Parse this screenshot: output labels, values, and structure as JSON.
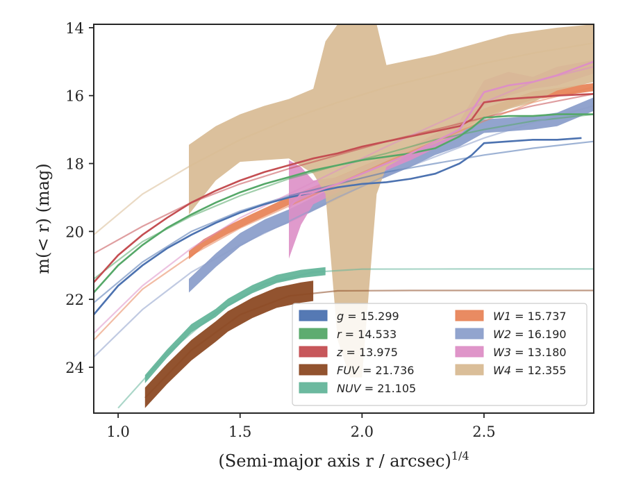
{
  "chart_data": {
    "type": "line",
    "title": "",
    "xlabel": "(Semi-major axis r / arcsec)",
    "xlabel_superscript": "1/4",
    "ylabel": "m(< r) (mag)",
    "xlim": [
      0.9,
      2.95
    ],
    "ylim": [
      25.35,
      13.9
    ],
    "y_inverted": true,
    "grid": false,
    "legend_position": "lower-right",
    "x_ticks": [
      "1.0",
      "1.5",
      "2.0",
      "2.5"
    ],
    "x_tick_values": [
      1.0,
      1.5,
      2.0,
      2.5
    ],
    "y_ticks": [
      "14",
      "16",
      "18",
      "20",
      "22",
      "24"
    ],
    "y_tick_values": [
      14,
      16,
      18,
      20,
      22,
      24
    ],
    "series": [
      {
        "name": "g = 15.299",
        "legend_math": "g",
        "legend_value": "15.299",
        "color": "#4c72b0",
        "data": [
          [
            0.9,
            22.45
          ],
          [
            1.0,
            21.6
          ],
          [
            1.1,
            21.0
          ],
          [
            1.2,
            20.5
          ],
          [
            1.3,
            20.1
          ],
          [
            1.4,
            19.75
          ],
          [
            1.5,
            19.45
          ],
          [
            1.6,
            19.2
          ],
          [
            1.7,
            19.0
          ],
          [
            1.8,
            18.85
          ],
          [
            1.9,
            18.7
          ],
          [
            2.0,
            18.6
          ],
          [
            2.1,
            18.55
          ],
          [
            2.2,
            18.45
          ],
          [
            2.3,
            18.3
          ],
          [
            2.4,
            18.0
          ],
          [
            2.45,
            17.75
          ],
          [
            2.5,
            17.4
          ],
          [
            2.6,
            17.35
          ],
          [
            2.7,
            17.3
          ],
          [
            2.8,
            17.3
          ],
          [
            2.9,
            17.25
          ]
        ],
        "model": [
          [
            0.9,
            22.1
          ],
          [
            1.1,
            20.9
          ],
          [
            1.3,
            20.0
          ],
          [
            1.5,
            19.4
          ],
          [
            1.7,
            18.95
          ],
          [
            1.9,
            18.6
          ],
          [
            2.1,
            18.25
          ],
          [
            2.3,
            18.0
          ],
          [
            2.5,
            17.75
          ],
          [
            2.7,
            17.55
          ],
          [
            2.95,
            17.35
          ]
        ]
      },
      {
        "name": "r = 14.533",
        "legend_math": "r",
        "legend_value": "14.533",
        "color": "#55a868",
        "data": [
          [
            0.9,
            21.8
          ],
          [
            1.0,
            21.0
          ],
          [
            1.1,
            20.4
          ],
          [
            1.2,
            19.9
          ],
          [
            1.3,
            19.5
          ],
          [
            1.4,
            19.15
          ],
          [
            1.5,
            18.85
          ],
          [
            1.6,
            18.6
          ],
          [
            1.7,
            18.4
          ],
          [
            1.8,
            18.2
          ],
          [
            1.9,
            18.05
          ],
          [
            2.0,
            17.9
          ],
          [
            2.1,
            17.8
          ],
          [
            2.2,
            17.7
          ],
          [
            2.3,
            17.55
          ],
          [
            2.4,
            17.2
          ],
          [
            2.45,
            16.95
          ],
          [
            2.5,
            16.65
          ],
          [
            2.6,
            16.6
          ],
          [
            2.7,
            16.6
          ],
          [
            2.8,
            16.55
          ],
          [
            2.95,
            16.55
          ]
        ],
        "model": [
          [
            0.9,
            21.4
          ],
          [
            1.1,
            20.3
          ],
          [
            1.3,
            19.55
          ],
          [
            1.5,
            18.95
          ],
          [
            1.7,
            18.45
          ],
          [
            1.9,
            18.05
          ],
          [
            2.1,
            17.7
          ],
          [
            2.3,
            17.3
          ],
          [
            2.5,
            17.0
          ],
          [
            2.7,
            16.75
          ],
          [
            2.95,
            16.55
          ]
        ]
      },
      {
        "name": "z = 13.975",
        "legend_math": "z",
        "legend_value": "13.975",
        "color": "#c44e52",
        "data": [
          [
            0.9,
            21.5
          ],
          [
            1.0,
            20.7
          ],
          [
            1.1,
            20.1
          ],
          [
            1.2,
            19.6
          ],
          [
            1.3,
            19.15
          ],
          [
            1.4,
            18.8
          ],
          [
            1.5,
            18.5
          ],
          [
            1.6,
            18.25
          ],
          [
            1.7,
            18.05
          ],
          [
            1.8,
            17.85
          ],
          [
            1.9,
            17.7
          ],
          [
            2.0,
            17.5
          ],
          [
            2.1,
            17.35
          ],
          [
            2.2,
            17.2
          ],
          [
            2.3,
            17.05
          ],
          [
            2.4,
            16.9
          ],
          [
            2.45,
            16.7
          ],
          [
            2.5,
            16.2
          ],
          [
            2.6,
            16.1
          ],
          [
            2.7,
            16.05
          ],
          [
            2.8,
            16.0
          ],
          [
            2.95,
            15.95
          ]
        ],
        "model": [
          [
            0.9,
            20.65
          ],
          [
            1.1,
            19.85
          ],
          [
            1.3,
            19.15
          ],
          [
            1.5,
            18.6
          ],
          [
            1.7,
            18.15
          ],
          [
            1.9,
            17.75
          ],
          [
            2.1,
            17.35
          ],
          [
            2.3,
            17.0
          ],
          [
            2.5,
            16.65
          ],
          [
            2.7,
            16.3
          ],
          [
            2.95,
            15.95
          ]
        ]
      },
      {
        "name": "FUV = 21.736",
        "legend_math": "FUV",
        "legend_value": "21.736",
        "color": "#8c4a24",
        "data": [
          [
            1.11,
            24.9
          ],
          [
            1.2,
            24.2
          ],
          [
            1.3,
            23.5
          ],
          [
            1.4,
            22.95
          ],
          [
            1.45,
            22.65
          ],
          [
            1.55,
            22.25
          ],
          [
            1.65,
            21.95
          ],
          [
            1.75,
            21.8
          ],
          [
            1.8,
            21.75
          ]
        ],
        "data_halfwidth": 0.3,
        "model": [
          [
            1.11,
            24.9
          ],
          [
            1.3,
            23.5
          ],
          [
            1.5,
            22.45
          ],
          [
            1.7,
            21.9
          ],
          [
            1.9,
            21.75
          ],
          [
            2.2,
            21.74
          ],
          [
            2.5,
            21.74
          ],
          [
            2.95,
            21.74
          ]
        ]
      },
      {
        "name": "NUV = 21.105",
        "legend_math": "NUV",
        "legend_value": "21.105",
        "color": "#64b59a",
        "data": [
          [
            1.11,
            24.35
          ],
          [
            1.2,
            23.6
          ],
          [
            1.3,
            22.85
          ],
          [
            1.4,
            22.4
          ],
          [
            1.45,
            22.1
          ],
          [
            1.55,
            21.7
          ],
          [
            1.65,
            21.4
          ],
          [
            1.75,
            21.25
          ],
          [
            1.85,
            21.17
          ]
        ],
        "data_halfwidth": 0.12,
        "model": [
          [
            1.0,
            25.2
          ],
          [
            1.2,
            23.6
          ],
          [
            1.4,
            22.4
          ],
          [
            1.6,
            21.55
          ],
          [
            1.8,
            21.2
          ],
          [
            2.0,
            21.11
          ],
          [
            2.4,
            21.105
          ],
          [
            2.95,
            21.105
          ]
        ]
      },
      {
        "name": "W1 = 15.737",
        "legend_math": "W1",
        "legend_value": "15.737",
        "color": "#e8855a",
        "data": [
          [
            1.29,
            20.7
          ],
          [
            1.35,
            20.35
          ],
          [
            1.45,
            19.95
          ],
          [
            1.55,
            19.6
          ],
          [
            1.7,
            19.1
          ],
          [
            1.9,
            18.5
          ],
          [
            2.1,
            17.9
          ],
          [
            2.3,
            17.35
          ],
          [
            2.5,
            16.5
          ],
          [
            2.7,
            16.0
          ],
          [
            2.95,
            15.75
          ]
        ],
        "data_halfwidth": 0.12,
        "model": [
          [
            0.9,
            23.2
          ],
          [
            1.1,
            21.7
          ],
          [
            1.3,
            20.7
          ],
          [
            1.5,
            19.9
          ],
          [
            1.7,
            19.25
          ],
          [
            1.9,
            18.6
          ],
          [
            2.1,
            17.95
          ],
          [
            2.3,
            17.35
          ],
          [
            2.5,
            16.75
          ],
          [
            2.7,
            16.2
          ],
          [
            2.95,
            15.75
          ]
        ]
      },
      {
        "name": "W2 = 16.190",
        "legend_math": "W2",
        "legend_value": "16.190",
        "color": "#8c9fcb",
        "data": [
          [
            1.29,
            21.6
          ],
          [
            1.4,
            20.85
          ],
          [
            1.5,
            20.25
          ],
          [
            1.6,
            19.85
          ],
          [
            1.7,
            19.55
          ],
          [
            1.8,
            19.2
          ],
          [
            1.9,
            18.85
          ],
          [
            2.0,
            18.5
          ],
          [
            2.1,
            18.2
          ],
          [
            2.2,
            17.9
          ],
          [
            2.3,
            17.55
          ],
          [
            2.4,
            17.3
          ],
          [
            2.5,
            16.9
          ],
          [
            2.6,
            16.85
          ],
          [
            2.7,
            16.8
          ],
          [
            2.8,
            16.7
          ],
          [
            2.95,
            16.25
          ]
        ],
        "data_halfwidth": 0.2,
        "model": [
          [
            0.9,
            23.7
          ],
          [
            1.1,
            22.3
          ],
          [
            1.3,
            21.2
          ],
          [
            1.5,
            20.4
          ],
          [
            1.7,
            19.7
          ],
          [
            1.9,
            19.0
          ],
          [
            2.1,
            18.35
          ],
          [
            2.3,
            17.8
          ],
          [
            2.5,
            17.25
          ],
          [
            2.7,
            16.8
          ],
          [
            2.95,
            16.3
          ]
        ]
      },
      {
        "name": "W3 = 13.180",
        "legend_math": "W3",
        "legend_value": "13.180",
        "color": "#dd8fc6",
        "data": [
          [
            1.7,
            19.3
          ],
          [
            1.75,
            18.9
          ],
          [
            1.8,
            18.85
          ],
          [
            1.9,
            18.6
          ],
          [
            2.0,
            18.3
          ],
          [
            2.2,
            17.7
          ],
          [
            2.4,
            17.0
          ],
          [
            2.5,
            15.9
          ],
          [
            2.6,
            15.7
          ],
          [
            2.7,
            15.6
          ],
          [
            2.8,
            15.4
          ],
          [
            2.95,
            15.0
          ]
        ],
        "data_lower": [
          [
            1.7,
            20.8
          ],
          [
            1.75,
            19.8
          ],
          [
            1.8,
            19.2
          ],
          [
            1.9,
            18.85
          ],
          [
            2.0,
            18.5
          ],
          [
            2.2,
            17.9
          ],
          [
            2.4,
            17.2
          ],
          [
            2.5,
            16.3
          ],
          [
            2.6,
            16.0
          ],
          [
            2.7,
            15.8
          ],
          [
            2.8,
            15.7
          ],
          [
            2.95,
            15.35
          ]
        ],
        "data_upper": [
          [
            1.7,
            17.9
          ],
          [
            1.75,
            18.1
          ],
          [
            1.8,
            18.5
          ],
          [
            1.9,
            18.4
          ],
          [
            2.0,
            18.1
          ],
          [
            2.2,
            17.5
          ],
          [
            2.4,
            16.75
          ],
          [
            2.5,
            15.55
          ],
          [
            2.6,
            15.3
          ],
          [
            2.7,
            15.45
          ],
          [
            2.8,
            15.15
          ],
          [
            2.95,
            14.95
          ]
        ],
        "model": [
          [
            0.9,
            23.0
          ],
          [
            1.1,
            21.6
          ],
          [
            1.3,
            20.5
          ],
          [
            1.5,
            19.6
          ],
          [
            1.7,
            18.9
          ],
          [
            1.9,
            18.2
          ],
          [
            2.1,
            17.5
          ],
          [
            2.3,
            16.85
          ],
          [
            2.5,
            16.2
          ],
          [
            2.7,
            15.6
          ],
          [
            2.95,
            15.15
          ]
        ]
      },
      {
        "name": "W4 = 12.355",
        "legend_math": "W4",
        "legend_value": "12.355",
        "color": "#d8bb94",
        "data_upper": [
          [
            1.29,
            17.45
          ],
          [
            1.4,
            16.9
          ],
          [
            1.5,
            16.55
          ],
          [
            1.6,
            16.3
          ],
          [
            1.7,
            16.1
          ],
          [
            1.8,
            15.8
          ],
          [
            1.85,
            14.4
          ],
          [
            1.9,
            13.9
          ],
          [
            2.0,
            13.9
          ],
          [
            2.06,
            13.9
          ],
          [
            2.1,
            15.1
          ],
          [
            2.2,
            14.95
          ],
          [
            2.3,
            14.8
          ],
          [
            2.4,
            14.6
          ],
          [
            2.5,
            14.4
          ],
          [
            2.6,
            14.2
          ],
          [
            2.7,
            14.1
          ],
          [
            2.8,
            14.0
          ],
          [
            2.95,
            13.9
          ]
        ],
        "data_lower": [
          [
            1.29,
            19.5
          ],
          [
            1.4,
            18.5
          ],
          [
            1.5,
            17.95
          ],
          [
            1.6,
            17.9
          ],
          [
            1.7,
            17.85
          ],
          [
            1.8,
            18.3
          ],
          [
            1.85,
            18.9
          ],
          [
            1.9,
            23.2
          ],
          [
            1.95,
            24.3
          ],
          [
            2.0,
            24.3
          ],
          [
            2.06,
            18.9
          ],
          [
            2.1,
            18.1
          ],
          [
            2.2,
            17.7
          ],
          [
            2.3,
            17.4
          ],
          [
            2.4,
            17.1
          ],
          [
            2.5,
            16.7
          ],
          [
            2.6,
            16.4
          ],
          [
            2.7,
            16.2
          ],
          [
            2.8,
            15.85
          ],
          [
            2.95,
            15.6
          ]
        ],
        "model": [
          [
            0.9,
            20.1
          ],
          [
            1.1,
            18.9
          ],
          [
            1.3,
            18.05
          ],
          [
            1.5,
            17.3
          ],
          [
            1.7,
            16.7
          ],
          [
            1.9,
            16.2
          ],
          [
            2.1,
            15.75
          ],
          [
            2.3,
            15.4
          ],
          [
            2.5,
            15.05
          ],
          [
            2.7,
            14.75
          ],
          [
            2.95,
            14.45
          ]
        ]
      }
    ]
  }
}
